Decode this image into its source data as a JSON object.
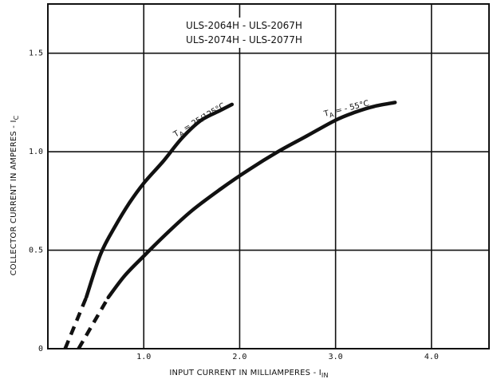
{
  "chart_data": {
    "type": "line",
    "title_lines": [
      "ULS-2064H - ULS-2067H",
      "ULS-2074H - ULS-2077H"
    ],
    "xlabel": "INPUT CURRENT IN MILLIAMPERES - I",
    "xlabel_sub": "IN",
    "ylabel": "COLLECTOR CURRENT IN AMPERES - I",
    "ylabel_sub": "C",
    "xlim": [
      0,
      4.6
    ],
    "ylim": [
      0,
      1.75
    ],
    "x_ticks": [
      {
        "value": 1.0,
        "label": "1.0"
      },
      {
        "value": 2.0,
        "label": "2.0"
      },
      {
        "value": 3.0,
        "label": "3.0"
      },
      {
        "value": 4.0,
        "label": "4.0"
      }
    ],
    "y_ticks": [
      {
        "value": 0,
        "label": "0"
      },
      {
        "value": 0.5,
        "label": "0.5"
      },
      {
        "value": 1.0,
        "label": "1.0"
      },
      {
        "value": 1.5,
        "label": "1.5"
      }
    ],
    "grid": true,
    "series": [
      {
        "name": "T_A = 25/125°C",
        "label_main": "T",
        "label_sub": "A",
        "label_rest": " = 25/125°C",
        "dashed": [
          [
            0.18,
            0.0
          ],
          [
            0.4,
            0.26
          ]
        ],
        "solid": [
          [
            0.4,
            0.26
          ],
          [
            0.55,
            0.48
          ],
          [
            0.7,
            0.62
          ],
          [
            0.85,
            0.74
          ],
          [
            1.0,
            0.84
          ],
          [
            1.2,
            0.95
          ],
          [
            1.4,
            1.07
          ],
          [
            1.6,
            1.16
          ],
          [
            1.8,
            1.21
          ],
          [
            1.92,
            1.24
          ]
        ]
      },
      {
        "name": "T_A = -55°C",
        "label_main": "T",
        "label_sub": "A",
        "label_rest": " = - 55°C",
        "dashed": [
          [
            0.32,
            0.0
          ],
          [
            0.63,
            0.26
          ]
        ],
        "solid": [
          [
            0.63,
            0.26
          ],
          [
            0.8,
            0.37
          ],
          [
            1.0,
            0.47
          ],
          [
            1.25,
            0.59
          ],
          [
            1.5,
            0.7
          ],
          [
            1.8,
            0.81
          ],
          [
            2.1,
            0.91
          ],
          [
            2.4,
            1.0
          ],
          [
            2.7,
            1.08
          ],
          [
            3.0,
            1.16
          ],
          [
            3.2,
            1.2
          ],
          [
            3.4,
            1.23
          ],
          [
            3.62,
            1.25
          ]
        ]
      }
    ]
  }
}
